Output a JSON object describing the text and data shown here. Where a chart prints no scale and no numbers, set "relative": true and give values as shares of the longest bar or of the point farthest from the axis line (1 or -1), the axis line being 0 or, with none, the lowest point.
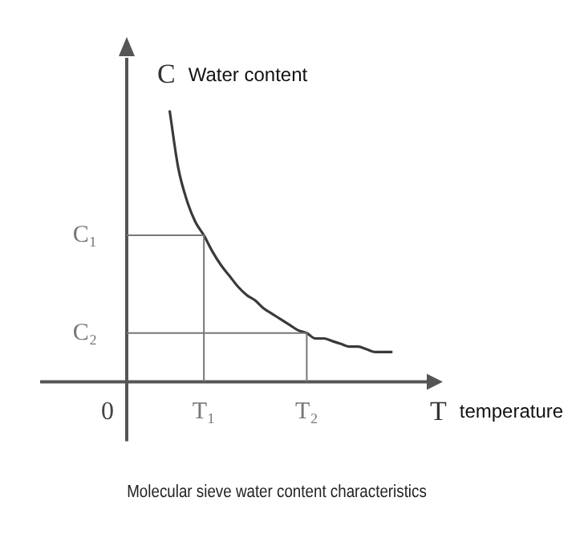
{
  "chart_data": {
    "type": "line",
    "title": "Molecular sieve water content characteristics",
    "xlabel": "T temperature",
    "ylabel": "C Water content",
    "relative": true,
    "tick_labels": "x",
    "legend": false,
    "grid": false,
    "marker": "none",
    "categories": [
      null,
      null,
      null,
      null,
      null,
      null,
      null,
      null,
      null,
      "T₁",
      null,
      null,
      null,
      null,
      null,
      null,
      null,
      null,
      null,
      null,
      null,
      "T₂",
      null,
      null,
      null,
      null,
      null,
      null,
      null,
      null,
      null,
      null,
      null,
      null,
      null,
      null
    ],
    "series": [
      {
        "color": "#3a3a3a",
        "values": [
          null,
          null,
          null,
          null,
          null,
          1,
          0.79,
          0.67,
          0.59,
          0.54,
          0.48,
          0.43,
          0.39,
          0.35,
          0.32,
          0.3,
          0.27,
          0.25,
          0.23,
          0.21,
          0.19,
          0.18,
          0.16,
          0.16,
          0.15,
          0.14,
          0.13,
          0.13,
          0.12,
          0.11,
          0.11,
          0.11,
          null,
          null,
          null,
          null
        ]
      }
    ],
    "annotations": [
      "C₁",
      "C₂",
      "0"
    ]
  }
}
